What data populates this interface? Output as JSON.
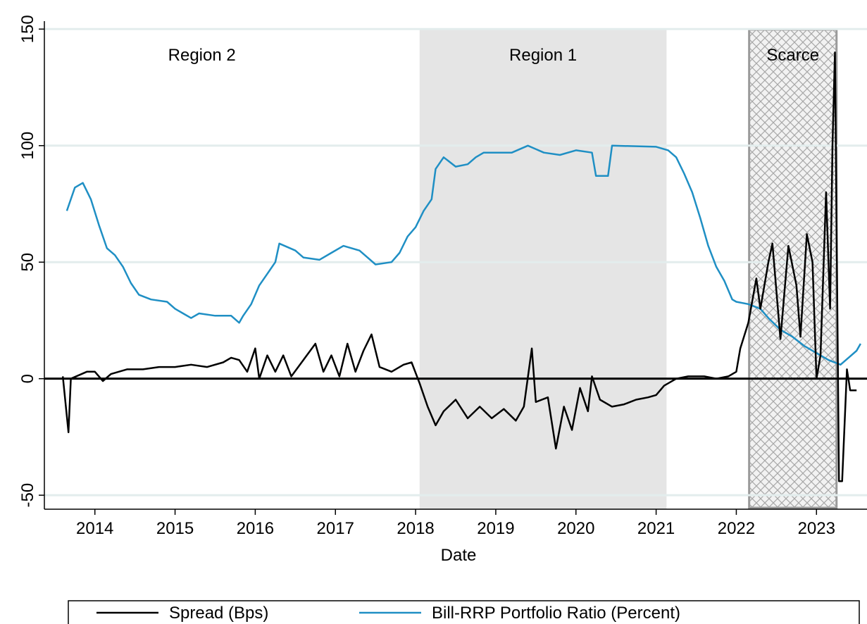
{
  "chart_data": {
    "type": "line",
    "x_label": "Date",
    "xlim": [
      2013.37,
      2023.63
    ],
    "xticks": [
      2014,
      2015,
      2016,
      2017,
      2018,
      2019,
      2020,
      2021,
      2022,
      2023
    ],
    "ylim": [
      -56,
      151
    ],
    "yticks": [
      -50,
      0,
      50,
      100,
      150
    ],
    "grid": true,
    "grid_color": "#e3eded",
    "reference_line": 0,
    "legend": "bottom",
    "regions": [
      {
        "label": "Region 2",
        "start": 2013.37,
        "end": 2017.3,
        "style": "none"
      },
      {
        "label": "Region 1",
        "start": 2018.05,
        "end": 2021.13,
        "style": "shaded"
      },
      {
        "label": "Scarce",
        "start": 2022.16,
        "end": 2023.25,
        "style": "hatched"
      }
    ],
    "series": [
      {
        "name": "Spread (Bps)",
        "color": "#000000",
        "x": [
          2013.6,
          2013.67,
          2013.7,
          2013.9,
          2014.0,
          2014.1,
          2014.2,
          2014.4,
          2014.6,
          2014.8,
          2015.0,
          2015.2,
          2015.4,
          2015.6,
          2015.7,
          2015.8,
          2015.9,
          2016.0,
          2016.05,
          2016.15,
          2016.25,
          2016.35,
          2016.45,
          2016.6,
          2016.75,
          2016.85,
          2016.95,
          2017.05,
          2017.15,
          2017.25,
          2017.35,
          2017.45,
          2017.55,
          2017.7,
          2017.85,
          2017.95,
          2018.05,
          2018.15,
          2018.25,
          2018.35,
          2018.5,
          2018.65,
          2018.8,
          2018.95,
          2019.1,
          2019.25,
          2019.35,
          2019.45,
          2019.5,
          2019.65,
          2019.75,
          2019.85,
          2019.95,
          2020.05,
          2020.15,
          2020.2,
          2020.3,
          2020.45,
          2020.6,
          2020.75,
          2020.9,
          2021.0,
          2021.1,
          2021.25,
          2021.4,
          2021.6,
          2021.75,
          2021.9,
          2022.0,
          2022.05,
          2022.15,
          2022.25,
          2022.3,
          2022.4,
          2022.45,
          2022.55,
          2022.65,
          2022.75,
          2022.8,
          2022.88,
          2022.95,
          2023.0,
          2023.05,
          2023.12,
          2023.17,
          2023.2,
          2023.23,
          2023.28,
          2023.32,
          2023.38,
          2023.42,
          2023.5
        ],
        "values": [
          1,
          -23,
          0,
          3,
          3,
          -1,
          2,
          4,
          4,
          5,
          5,
          6,
          5,
          7,
          9,
          8,
          3,
          13,
          0,
          10,
          3,
          10,
          1,
          8,
          15,
          3,
          10,
          1,
          15,
          3,
          12,
          19,
          5,
          3,
          6,
          7,
          -2,
          -12,
          -20,
          -14,
          -9,
          -17,
          -12,
          -17,
          -13,
          -18,
          -12,
          13,
          -10,
          -8,
          -30,
          -12,
          -22,
          -4,
          -14,
          1,
          -9,
          -12,
          -11,
          -9,
          -8,
          -7,
          -3,
          0,
          1,
          1,
          0,
          1,
          3,
          13,
          24,
          43,
          30,
          50,
          58,
          17,
          57,
          40,
          18,
          62,
          50,
          0,
          10,
          80,
          30,
          100,
          140,
          -44,
          -44,
          4,
          -5,
          -5
        ]
      },
      {
        "name": "Bill-RRP Portfolio Ratio (Percent)",
        "color": "#1f8fc4",
        "x": [
          2013.65,
          2013.75,
          2013.85,
          2013.95,
          2014.05,
          2014.15,
          2014.25,
          2014.35,
          2014.45,
          2014.55,
          2014.7,
          2014.9,
          2015.0,
          2015.1,
          2015.2,
          2015.3,
          2015.5,
          2015.7,
          2015.8,
          2015.85,
          2015.95,
          2016.05,
          2016.15,
          2016.25,
          2016.3,
          2016.5,
          2016.6,
          2016.8,
          2016.95,
          2017.1,
          2017.3,
          2017.4,
          2017.5,
          2017.7,
          2017.8,
          2017.9,
          2018.0,
          2018.1,
          2018.2,
          2018.25,
          2018.35,
          2018.5,
          2018.65,
          2018.75,
          2018.85,
          2019.2,
          2019.4,
          2019.6,
          2019.8,
          2020.0,
          2020.2,
          2020.25,
          2020.4,
          2020.45,
          2021.0,
          2021.15,
          2021.25,
          2021.35,
          2021.45,
          2021.55,
          2021.65,
          2021.75,
          2021.85,
          2021.95,
          2022.0,
          2022.15,
          2022.3,
          2022.4,
          2022.55,
          2022.7,
          2022.85,
          2023.0,
          2023.15,
          2023.3,
          2023.4,
          2023.5,
          2023.55
        ],
        "values": [
          72,
          82,
          84,
          77,
          66,
          56,
          53,
          48,
          41,
          36,
          34,
          33,
          30,
          28,
          26,
          28,
          27,
          27,
          24,
          27,
          32,
          40,
          45,
          50,
          58,
          55,
          52,
          51,
          54,
          57,
          55,
          52,
          49,
          50,
          54,
          61,
          65,
          72,
          77,
          90,
          95,
          91,
          92,
          95,
          97,
          97,
          100,
          97,
          96,
          98,
          97,
          87,
          87,
          100,
          99.5,
          98,
          95,
          88,
          80,
          69,
          57,
          48,
          42,
          34,
          33,
          32,
          30,
          26,
          21,
          18,
          14,
          11,
          8,
          6,
          9,
          12,
          15
        ]
      }
    ]
  }
}
